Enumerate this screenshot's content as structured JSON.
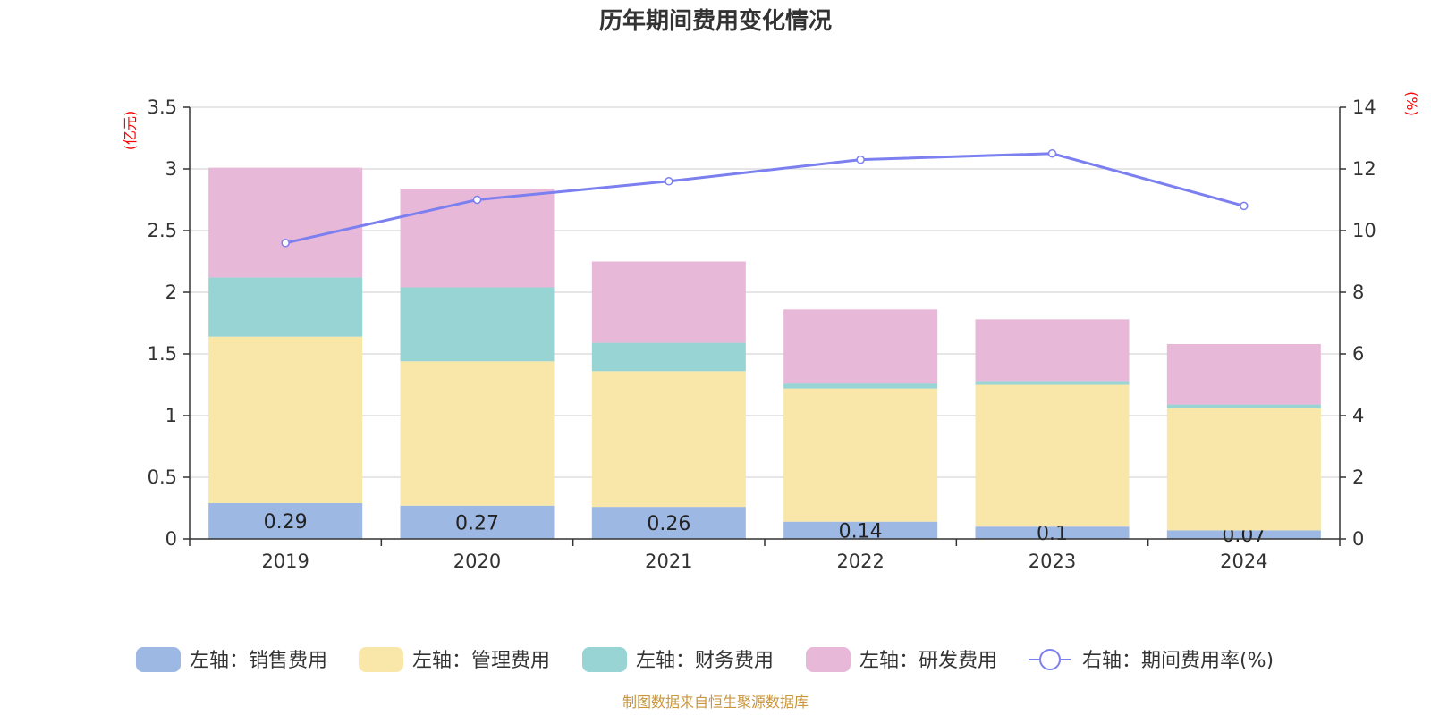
{
  "chart_data": {
    "type": "bar",
    "stacked": true,
    "title": "历年期间费用变化情况",
    "categories": [
      "2019",
      "2020",
      "2021",
      "2022",
      "2023",
      "2024"
    ],
    "y_left": {
      "unit": "(亿元)",
      "ylim": [
        0,
        3.5
      ],
      "ticks": [
        "0",
        "0.5",
        "1",
        "1.5",
        "2",
        "2.5",
        "3",
        "3.5"
      ]
    },
    "y_right": {
      "unit": "(%)",
      "ylim": [
        0,
        14
      ],
      "ticks": [
        "0",
        "2",
        "4",
        "6",
        "8",
        "10",
        "12",
        "14"
      ]
    },
    "grid": true,
    "legend_position": "bottom",
    "series": [
      {
        "name": "左轴：销售费用",
        "axis": "left",
        "color": "#9db8e2",
        "values": [
          0.29,
          0.27,
          0.26,
          0.14,
          0.1,
          0.07
        ],
        "labels": [
          "0.29",
          "0.27",
          "0.26",
          "0.14",
          "0.1",
          "0.07"
        ]
      },
      {
        "name": "左轴：管理费用",
        "axis": "left",
        "color": "#f8e7a8",
        "values": [
          1.35,
          1.17,
          1.1,
          1.08,
          1.15,
          0.99
        ]
      },
      {
        "name": "左轴：财务费用",
        "axis": "left",
        "color": "#99d4d4",
        "values": [
          0.48,
          0.6,
          0.23,
          0.04,
          0.03,
          0.03
        ]
      },
      {
        "name": "左轴：研发费用",
        "axis": "left",
        "color": "#e8b8d8",
        "values": [
          0.89,
          0.8,
          0.66,
          0.6,
          0.5,
          0.49
        ]
      },
      {
        "name": "右轴：期间费用率(%)",
        "axis": "right",
        "type": "line",
        "color": "#7b7ff0",
        "values": [
          9.6,
          11.0,
          11.6,
          12.3,
          12.5,
          10.8
        ]
      }
    ],
    "source": "制图数据来自恒生聚源数据库",
    "source_color": "#c8963e"
  }
}
